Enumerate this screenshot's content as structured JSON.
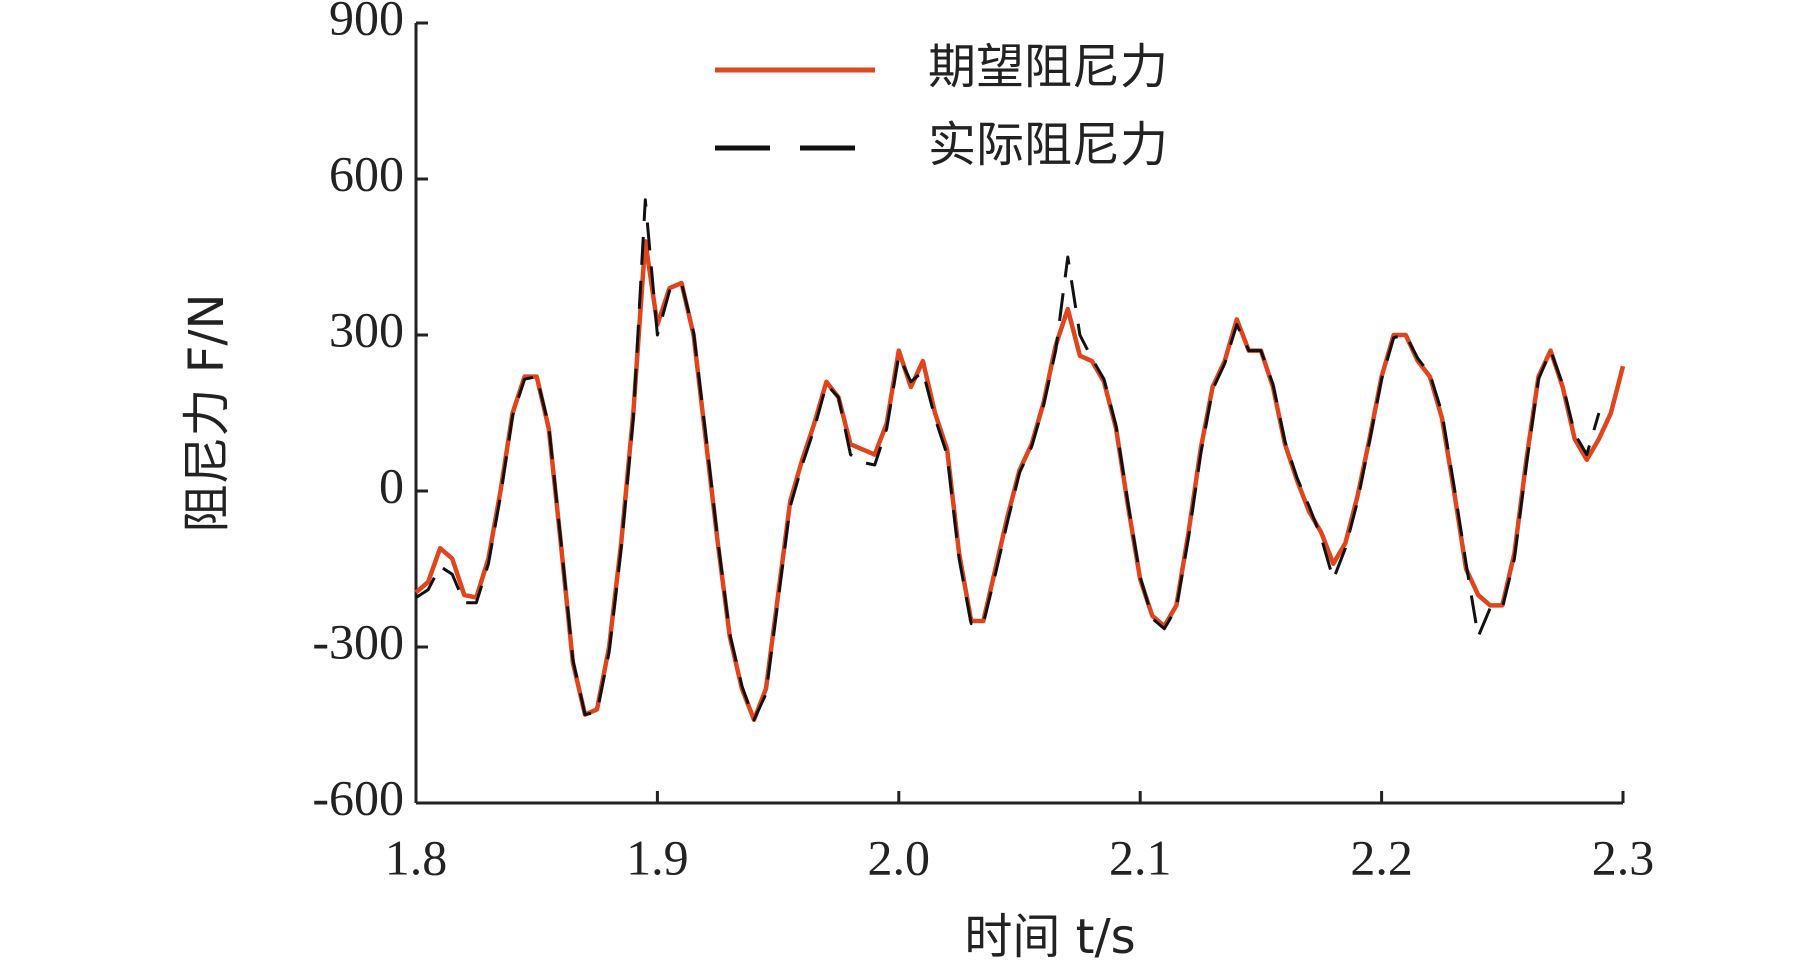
{
  "chart_data": {
    "type": "line",
    "xlabel": "时间 t/s",
    "ylabel": "阻尼力 F/N",
    "xlim": [
      1.8,
      2.3
    ],
    "xticks": [
      1.8,
      1.9,
      {
        "value": 2,
        "label": "2.0"
      },
      2.1,
      2.2,
      2.3
    ],
    "ylim": [
      -600,
      900
    ],
    "yticks": [
      -600,
      -300,
      0,
      300,
      600,
      900
    ],
    "legend": "upper center",
    "x": [
      1.8,
      1.805,
      1.81,
      1.815,
      1.82,
      1.825,
      1.83,
      1.835,
      1.84,
      1.845,
      1.85,
      1.855,
      1.86,
      1.865,
      1.87,
      1.875,
      1.88,
      1.885,
      1.89,
      1.895,
      1.9,
      1.905,
      1.91,
      1.915,
      1.92,
      1.925,
      1.93,
      1.935,
      1.94,
      1.945,
      1.95,
      1.955,
      1.96,
      1.965,
      1.97,
      1.975,
      1.98,
      1.985,
      1.99,
      1.995,
      2.0,
      2.005,
      2.01,
      2.015,
      2.02,
      2.025,
      2.03,
      2.035,
      2.04,
      2.045,
      2.05,
      2.055,
      2.06,
      2.065,
      2.07,
      2.075,
      2.08,
      2.085,
      2.09,
      2.095,
      2.1,
      2.105,
      2.11,
      2.115,
      2.12,
      2.125,
      2.13,
      2.135,
      2.14,
      2.145,
      2.15,
      2.155,
      2.16,
      2.165,
      2.17,
      2.175,
      2.18,
      2.185,
      2.19,
      2.195,
      2.2,
      2.205,
      2.21,
      2.215,
      2.22,
      2.225,
      2.23,
      2.235,
      2.24,
      2.245,
      2.25,
      2.255,
      2.26,
      2.265,
      2.27,
      2.275,
      2.28,
      2.285,
      2.29,
      2.295,
      2.3
    ],
    "series": [
      {
        "name": "期望阻尼力",
        "color": "#e0451b",
        "dash": false,
        "values": [
          -195,
          -175,
          -110,
          -130,
          -200,
          -205,
          -130,
          0,
          150,
          220,
          220,
          120,
          -100,
          -330,
          -430,
          -420,
          -300,
          -100,
          150,
          480,
          320,
          390,
          400,
          300,
          100,
          -100,
          -280,
          -380,
          -440,
          -380,
          -200,
          -20,
          60,
          130,
          210,
          180,
          90,
          80,
          70,
          130,
          270,
          200,
          250,
          150,
          80,
          -120,
          -250,
          -250,
          -150,
          -50,
          40,
          90,
          170,
          280,
          350,
          260,
          250,
          210,
          120,
          -30,
          -170,
          -240,
          -260,
          -220,
          -80,
          80,
          200,
          250,
          330,
          270,
          270,
          200,
          90,
          20,
          -40,
          -80,
          -140,
          -100,
          -10,
          100,
          220,
          300,
          300,
          250,
          220,
          140,
          0,
          -150,
          -200,
          -220,
          -220,
          -120,
          60,
          220,
          270,
          200,
          100,
          60,
          100,
          150,
          240
        ]
      },
      {
        "name": "实际阻尼力",
        "color": "#111111",
        "dash": true,
        "values": [
          -205,
          -190,
          -145,
          -160,
          -215,
          -215,
          -140,
          -10,
          145,
          215,
          220,
          125,
          -95,
          -325,
          -430,
          -425,
          -310,
          -110,
          140,
          560,
          300,
          385,
          400,
          305,
          110,
          -95,
          -275,
          -375,
          -440,
          -390,
          -210,
          -30,
          50,
          120,
          205,
          180,
          70,
          55,
          50,
          120,
          260,
          210,
          230,
          140,
          70,
          -130,
          -255,
          -255,
          -160,
          -60,
          35,
          85,
          165,
          270,
          450,
          300,
          255,
          215,
          125,
          -25,
          -165,
          -245,
          -265,
          -225,
          -90,
          70,
          195,
          245,
          320,
          270,
          270,
          205,
          95,
          25,
          -30,
          -90,
          -170,
          -110,
          -20,
          95,
          215,
          295,
          300,
          255,
          225,
          150,
          10,
          -140,
          -280,
          -225,
          -225,
          -130,
          50,
          215,
          270,
          205,
          110,
          70,
          150,
          null,
          null
        ]
      }
    ]
  }
}
